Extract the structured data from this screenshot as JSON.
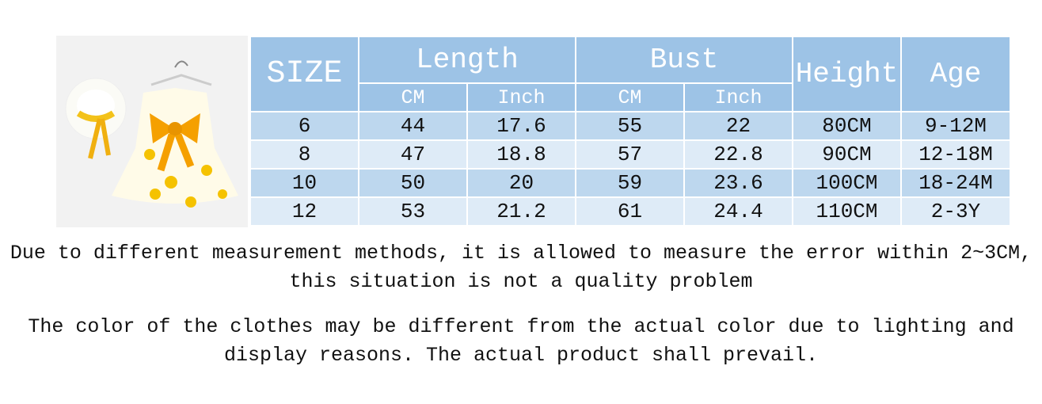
{
  "table": {
    "header": {
      "size": "SIZE",
      "groups": [
        "Length",
        "Bust",
        "Height",
        "Age"
      ],
      "subheaders": [
        "CM",
        "Inch",
        "CM",
        "Inch"
      ]
    },
    "rows": [
      [
        6,
        44,
        17.6,
        55,
        22,
        "80CM",
        "9-12M"
      ],
      [
        8,
        47,
        18.8,
        57,
        22.8,
        "90CM",
        "12-18M"
      ],
      [
        10,
        50,
        20,
        59,
        23.6,
        "100CM",
        "18-24M"
      ],
      [
        12,
        53,
        21.2,
        61,
        24.4,
        "110CM",
        "2-3Y"
      ]
    ]
  },
  "notes": [
    "Due to different measurement methods, it is allowed to measure the error within 2~3CM, this situation is not a quality problem",
    "The color of the clothes may be different from the actual color due to lighting and display reasons. The actual product shall prevail."
  ]
}
